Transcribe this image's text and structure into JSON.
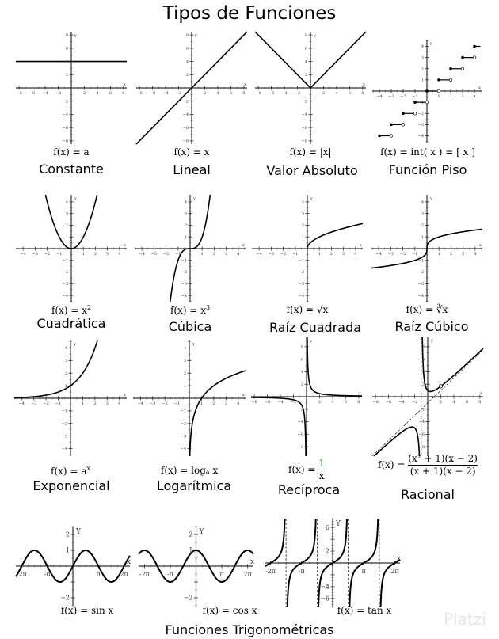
{
  "title": "Tipos de Funciones",
  "section_label": "Funciones Trigonométricas",
  "watermark": "Platzi",
  "graphs": [
    {
      "id": "constante",
      "name": "Constante",
      "formula": "f(x) = a",
      "kind": "constant",
      "xlim": [
        -8.5,
        8.5
      ],
      "ylim": [
        -8.5,
        8.5
      ],
      "xticks": [
        -8,
        -6,
        -4,
        -2,
        2,
        4,
        6,
        8
      ],
      "yticks": [
        -8,
        -6,
        -4,
        -2,
        2,
        4,
        6,
        8
      ],
      "axis_labels": [
        "x",
        "y"
      ]
    },
    {
      "id": "lineal",
      "name": "Lineal",
      "formula": "f(x) = x",
      "kind": "linear",
      "xlim": [
        -8.5,
        8.5
      ],
      "ylim": [
        -8.5,
        8.5
      ],
      "xticks": [
        -8,
        -6,
        -4,
        -2,
        2,
        4,
        6,
        8
      ],
      "yticks": [
        -8,
        -6,
        -4,
        -2,
        2,
        4,
        6,
        8
      ],
      "axis_labels": [
        "x",
        "y"
      ]
    },
    {
      "id": "valor-absoluto",
      "name": "Valor Absoluto",
      "formula": "f(x) = |x|",
      "kind": "abs",
      "xlim": [
        -8.5,
        8.5
      ],
      "ylim": [
        -8.5,
        8.5
      ],
      "xticks": [
        -8,
        -6,
        -4,
        -2,
        2,
        4,
        6,
        8
      ],
      "yticks": [
        -8,
        -6,
        -4,
        -2,
        2,
        4,
        6,
        8
      ],
      "axis_labels": [
        "x",
        "y"
      ]
    },
    {
      "id": "funcion-piso",
      "name": "Función Piso",
      "formula": "f(x) = int( x ) = [ x ]",
      "kind": "floor",
      "xlim": [
        -4.6,
        4.6
      ],
      "ylim": [
        -4.6,
        4.6
      ],
      "xticks": [
        -4,
        -3,
        -2,
        -1,
        1,
        2,
        3,
        4
      ],
      "yticks": [
        -4,
        -3,
        -2,
        -1,
        1,
        2,
        3,
        4
      ],
      "axis_labels": [
        "x",
        "y"
      ]
    },
    {
      "id": "cuadratica",
      "name": "Cuadrática",
      "formula": "f(x) = x",
      "sup": "2",
      "kind": "square",
      "xlim": [
        -4.6,
        4.6
      ],
      "ylim": [
        -4.6,
        4.6
      ],
      "xticks": [
        -4,
        -3,
        -2,
        -1,
        1,
        2,
        3,
        4
      ],
      "yticks": [
        -4,
        -3,
        -2,
        -1,
        1,
        2,
        3,
        4
      ],
      "axis_labels": [
        "x",
        "y"
      ]
    },
    {
      "id": "cubica",
      "name": "Cúbica",
      "formula": "f(x) = x",
      "sup": "3",
      "kind": "cube",
      "xlim": [
        -4.6,
        4.6
      ],
      "ylim": [
        -4.6,
        4.6
      ],
      "xticks": [
        -4,
        -3,
        -2,
        -1,
        1,
        2,
        3,
        4
      ],
      "yticks": [
        -4,
        -3,
        -2,
        -1,
        1,
        2,
        3,
        4
      ],
      "axis_labels": [
        "x",
        "y"
      ]
    },
    {
      "id": "raiz-cuadrada",
      "name": "Raíz Cuadrada",
      "formula": "f(x) = √x",
      "kind": "sqrt",
      "xlim": [
        -4.6,
        4.6
      ],
      "ylim": [
        -4.6,
        4.6
      ],
      "xticks": [
        -4,
        -3,
        -2,
        -1,
        1,
        2,
        3,
        4
      ],
      "yticks": [
        -4,
        -3,
        -2,
        -1,
        1,
        2,
        3,
        4
      ],
      "axis_labels": [
        "x",
        "y"
      ]
    },
    {
      "id": "raiz-cubico",
      "name": "Raíz Cúbico",
      "formula": "f(x) = ∛x",
      "kind": "cbrt",
      "xlim": [
        -4.6,
        4.6
      ],
      "ylim": [
        -4.6,
        4.6
      ],
      "xticks": [
        -4,
        -3,
        -2,
        -1,
        1,
        2,
        3,
        4
      ],
      "yticks": [
        -4,
        -3,
        -2,
        -1,
        1,
        2,
        3,
        4
      ],
      "axis_labels": [
        "x",
        "y"
      ]
    },
    {
      "id": "exponencial",
      "name": "Exponencial",
      "formula": "f(x) = a",
      "sup": "x",
      "kind": "exp",
      "xlim": [
        -4.6,
        4.6
      ],
      "ylim": [
        -4.6,
        4.6
      ],
      "xticks": [
        -4,
        -3,
        -2,
        -1,
        1,
        2,
        3,
        4
      ],
      "yticks": [
        -4,
        -3,
        -2,
        -1,
        1,
        2,
        3,
        4
      ],
      "axis_labels": [
        "x",
        "y"
      ]
    },
    {
      "id": "logaritmica",
      "name": "Logarítmica",
      "formula": "f(x) = logₐ x",
      "kind": "log",
      "xlim": [
        -4.6,
        4.6
      ],
      "ylim": [
        -4.6,
        4.6
      ],
      "xticks": [
        -4,
        -3,
        -2,
        -1,
        1,
        2,
        3,
        4
      ],
      "yticks": [
        -4,
        -3,
        -2,
        -1,
        1,
        2,
        3,
        4
      ],
      "axis_labels": [
        "x",
        "y"
      ]
    },
    {
      "id": "reciproca",
      "name": "Recíproca",
      "formula": "f(x) =",
      "numerator": "1",
      "denominator": "x",
      "kind": "recip",
      "xlim": [
        -8.5,
        8.5
      ],
      "ylim": [
        -9.5,
        9.5
      ],
      "xticks": [
        -8,
        -6,
        -4,
        -2,
        2,
        4,
        6,
        8
      ],
      "yticks": [
        -8,
        -6,
        -4,
        -2,
        2,
        4,
        6,
        8
      ],
      "axis_labels": [
        "x",
        "y"
      ]
    },
    {
      "id": "racional",
      "name": "Racional",
      "formula": "f(x) =",
      "numerator": "(x² + 1)(x − 2)",
      "denominator": "(x + 1)(x − 2)",
      "kind": "rational",
      "xlim": [
        -8.5,
        8.5
      ],
      "ylim": [
        -9.5,
        9.5
      ],
      "xticks": [
        -8,
        -6,
        -4,
        -2,
        2,
        4,
        6,
        8
      ],
      "yticks": [
        -8,
        -6,
        -4,
        -2,
        2,
        4,
        6,
        8
      ],
      "axis_labels": [
        "x",
        "y"
      ]
    },
    {
      "id": "seno",
      "name": "",
      "formula": "f(x) = sin x",
      "kind": "sin",
      "xlim": [
        -7,
        7
      ],
      "ylim": [
        -2.5,
        2.5
      ],
      "xticks": [
        -6.283,
        -3.1416,
        3.1416,
        6.283
      ],
      "xtick_labels": [
        "-2π",
        "-π",
        "π",
        "2π"
      ],
      "yticks": [
        -2,
        -1,
        1,
        2
      ],
      "ytick_labels": [
        "−2",
        "",
        "1",
        "2"
      ],
      "axis_labels": [
        "x",
        "Y"
      ]
    },
    {
      "id": "coseno",
      "name": "",
      "formula": "f(x) = cos x",
      "kind": "cos",
      "xlim": [
        -7,
        7
      ],
      "ylim": [
        -2.5,
        2.5
      ],
      "xticks": [
        -6.283,
        -3.1416,
        3.1416,
        6.283
      ],
      "xtick_labels": [
        "-2π",
        "-π",
        "π",
        "2π"
      ],
      "yticks": [
        -2,
        -1,
        1,
        2
      ],
      "ytick_labels": [
        "−2",
        "",
        "1",
        "2"
      ],
      "axis_labels": [
        "x",
        "Y"
      ]
    },
    {
      "id": "tangente",
      "name": "",
      "formula": "f(x) = tan x",
      "kind": "tan",
      "xlim": [
        -6.8,
        6.8
      ],
      "ylim": [
        -7.5,
        7.5
      ],
      "xticks": [
        -6.283,
        -3.1416,
        3.1416,
        6.283
      ],
      "xtick_labels": [
        "-2π",
        "-π",
        "π",
        "2π"
      ],
      "yticks": [
        -6,
        -4,
        -2,
        2,
        4,
        6
      ],
      "ytick_labels": [
        "−6",
        "−4",
        "",
        "2",
        "",
        "6"
      ],
      "axis_labels": [
        "x",
        "Y"
      ]
    }
  ]
}
